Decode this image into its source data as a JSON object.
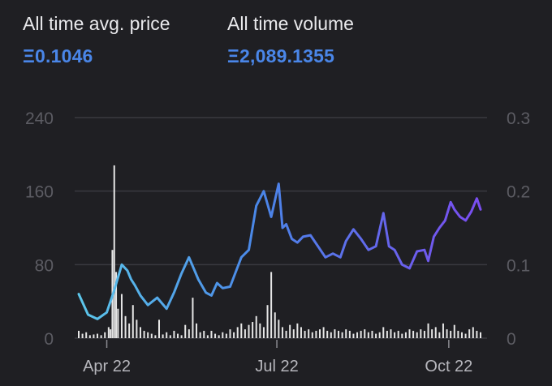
{
  "stats": {
    "avg_price": {
      "label": "All time avg. price",
      "value": "Ξ0.1046"
    },
    "volume": {
      "label": "All time volume",
      "value": "Ξ2,089.1355"
    }
  },
  "colors": {
    "background": "#1f1f23",
    "accent": "#4a86e8",
    "line_start": "#5cc6ea",
    "line_mid": "#4a86e8",
    "line_end": "#7a4df0",
    "volume_bars": "#e6e6e6",
    "grid": "#3a3a40"
  },
  "chart_data": {
    "type": "line",
    "grid": true,
    "left_axis": {
      "ticks": [
        "240",
        "160",
        "80",
        "0"
      ],
      "values": [
        240,
        160,
        80,
        0
      ],
      "range": [
        0,
        240
      ]
    },
    "right_axis": {
      "ticks": [
        "0.3",
        "0.2",
        "0.1",
        "0"
      ],
      "values": [
        0.3,
        0.2,
        0.1,
        0
      ],
      "range": [
        0,
        0.3
      ]
    },
    "x_ticks": [
      {
        "label": "Apr 22",
        "x": 16
      },
      {
        "label": "Jul 22",
        "x": 107
      },
      {
        "label": "Oct 22",
        "x": 199
      }
    ],
    "x_range": [
      1,
      216
    ],
    "price_series": {
      "x": [
        1,
        6,
        11,
        16,
        20,
        24,
        27,
        29,
        31,
        34,
        38,
        43,
        48,
        52,
        56,
        60,
        65,
        69,
        72,
        75,
        78,
        82,
        85,
        88,
        92,
        96,
        100,
        104,
        108,
        110,
        112,
        115,
        118,
        121,
        125,
        129,
        133,
        137,
        141,
        144,
        148,
        152,
        156,
        160,
        164,
        167,
        170,
        174,
        178,
        182,
        186,
        188,
        191,
        194,
        197,
        200,
        202,
        205,
        208,
        211,
        214,
        216
      ],
      "y": [
        0.06,
        0.032,
        0.026,
        0.035,
        0.065,
        0.1,
        0.092,
        0.08,
        0.072,
        0.058,
        0.045,
        0.055,
        0.04,
        0.062,
        0.088,
        0.11,
        0.08,
        0.062,
        0.058,
        0.075,
        0.068,
        0.07,
        0.09,
        0.11,
        0.12,
        0.18,
        0.2,
        0.165,
        0.21,
        0.15,
        0.155,
        0.135,
        0.13,
        0.138,
        0.14,
        0.125,
        0.11,
        0.115,
        0.11,
        0.132,
        0.148,
        0.135,
        0.12,
        0.125,
        0.17,
        0.125,
        0.12,
        0.1,
        0.095,
        0.118,
        0.12,
        0.105,
        0.138,
        0.15,
        0.16,
        0.185,
        0.175,
        0.165,
        0.16,
        0.172,
        0.19,
        0.175
      ]
    },
    "volume_series": {
      "x": [
        1,
        3,
        5,
        7,
        9,
        11,
        13,
        15,
        17,
        18,
        19,
        20,
        21,
        22,
        24,
        26,
        28,
        30,
        32,
        34,
        36,
        38,
        40,
        42,
        44,
        46,
        48,
        50,
        52,
        54,
        56,
        58,
        60,
        62,
        64,
        66,
        68,
        70,
        72,
        74,
        76,
        78,
        80,
        82,
        84,
        86,
        88,
        90,
        92,
        94,
        96,
        98,
        100,
        102,
        104,
        106,
        108,
        110,
        112,
        114,
        116,
        118,
        120,
        122,
        124,
        126,
        128,
        130,
        132,
        134,
        136,
        138,
        140,
        142,
        144,
        146,
        148,
        150,
        152,
        154,
        156,
        158,
        160,
        162,
        164,
        166,
        168,
        170,
        172,
        174,
        176,
        178,
        180,
        182,
        184,
        186,
        188,
        190,
        192,
        194,
        196,
        198,
        200,
        202,
        204,
        206,
        208,
        210,
        212,
        214,
        216
      ],
      "y": [
        0.01,
        0.006,
        0.008,
        0.004,
        0.005,
        0.006,
        0.004,
        0.008,
        0.015,
        0.012,
        0.12,
        0.235,
        0.09,
        0.04,
        0.06,
        0.03,
        0.02,
        0.045,
        0.025,
        0.015,
        0.01,
        0.008,
        0.006,
        0.004,
        0.025,
        0.005,
        0.008,
        0.004,
        0.01,
        0.006,
        0.004,
        0.018,
        0.012,
        0.055,
        0.02,
        0.008,
        0.01,
        0.004,
        0.01,
        0.006,
        0.004,
        0.008,
        0.006,
        0.012,
        0.008,
        0.015,
        0.02,
        0.012,
        0.018,
        0.022,
        0.03,
        0.02,
        0.015,
        0.045,
        0.09,
        0.035,
        0.025,
        0.015,
        0.01,
        0.018,
        0.012,
        0.02,
        0.015,
        0.01,
        0.012,
        0.008,
        0.01,
        0.012,
        0.015,
        0.01,
        0.008,
        0.012,
        0.01,
        0.008,
        0.012,
        0.01,
        0.006,
        0.008,
        0.01,
        0.012,
        0.008,
        0.01,
        0.006,
        0.008,
        0.015,
        0.01,
        0.012,
        0.008,
        0.01,
        0.006,
        0.008,
        0.012,
        0.01,
        0.008,
        0.012,
        0.01,
        0.02,
        0.012,
        0.015,
        0.008,
        0.02,
        0.012,
        0.01,
        0.018,
        0.01,
        0.008,
        0.006,
        0.012,
        0.015,
        0.01,
        0.008
      ]
    }
  }
}
